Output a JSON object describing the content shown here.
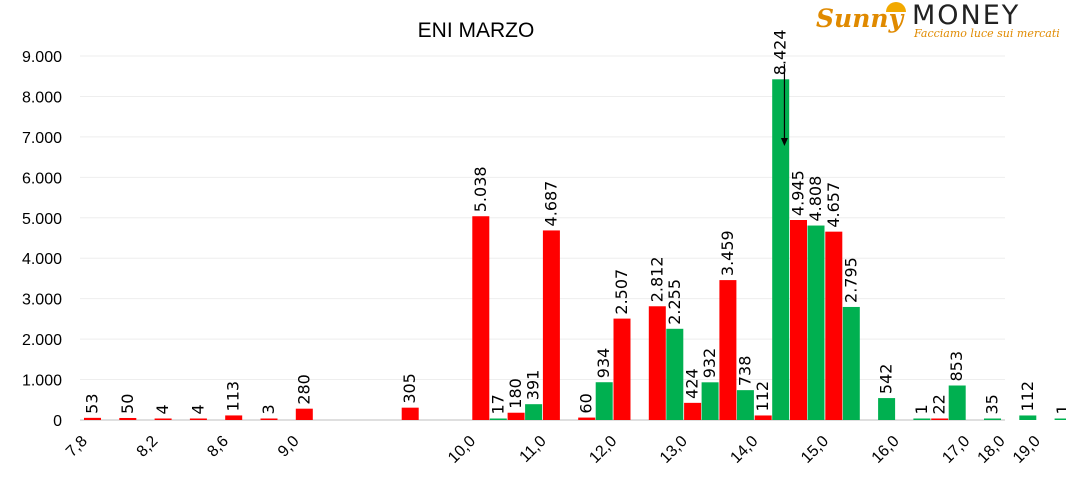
{
  "logo": {
    "brand_sunny": "Sunny",
    "brand_money": "MONEY",
    "tagline": "Facciamo luce sui mercati"
  },
  "colors": {
    "red": "#ff0000",
    "green": "#00b050",
    "axis": "#bfbfbf",
    "grid": "#eeeeee",
    "text": "#000000",
    "brand_orange": "#e08a00"
  },
  "chart_data": {
    "type": "bar",
    "title": "ENI MARZO",
    "xlabel": "",
    "ylabel": "",
    "ylim": [
      0,
      9000
    ],
    "y_ticks": [
      {
        "value": 0,
        "label": "0"
      },
      {
        "value": 1000,
        "label": "1.000"
      },
      {
        "value": 2000,
        "label": "2.000"
      },
      {
        "value": 3000,
        "label": "3.000"
      },
      {
        "value": 4000,
        "label": "4.000"
      },
      {
        "value": 5000,
        "label": "5.000"
      },
      {
        "value": 6000,
        "label": "6.000"
      },
      {
        "value": 7000,
        "label": "7.000"
      },
      {
        "value": 8000,
        "label": "8.000"
      },
      {
        "value": 9000,
        "label": "9.000"
      }
    ],
    "grid": true,
    "legend": "none",
    "categories": [
      "7,8",
      "8,0",
      "8,2",
      "8,4",
      "8,6",
      "8,8",
      "9,0",
      "9,2",
      "9,4",
      "9,6",
      "9,8",
      "10,0",
      "10,5",
      "11,0",
      "11,5",
      "12,0",
      "12,5",
      "13,0",
      "13,5",
      "14,0",
      "14,5",
      "15,0",
      "15,5",
      "16,0",
      "16,5",
      "17,0",
      "18,0",
      "19,0"
    ],
    "x_tick_labels": [
      "7,8",
      "",
      "8,2",
      "",
      "8,6",
      "",
      "9,0",
      "",
      "",
      "",
      "",
      "10,0",
      "",
      "11,0",
      "",
      "12,0",
      "",
      "13,0",
      "",
      "14,0",
      "",
      "15,0",
      "",
      "16,0",
      "",
      "17,0",
      "18,0",
      "19,0"
    ],
    "series": [
      {
        "color": "red",
        "values": [
          53,
          50,
          4,
          4,
          113,
          3,
          280,
          null,
          null,
          305,
          null,
          5038,
          180,
          4687,
          60,
          2507,
          2812,
          424,
          3459,
          112,
          4945,
          4657,
          null,
          null,
          22,
          null,
          null,
          null
        ],
        "labels": [
          "53",
          "50",
          "4",
          "4",
          "113",
          "3",
          "280",
          "",
          "",
          "305",
          "",
          "5.038",
          "180",
          "4.687",
          "60",
          "2.507",
          "2.812",
          "424",
          "3.459",
          "112",
          "4.945",
          "4.657",
          "",
          "",
          "22",
          "",
          "",
          ""
        ]
      },
      {
        "color": "green",
        "values": [
          null,
          null,
          null,
          null,
          null,
          null,
          null,
          null,
          null,
          null,
          null,
          17,
          391,
          null,
          934,
          null,
          2255,
          932,
          738,
          8424,
          4808,
          2795,
          542,
          1,
          853,
          35,
          112,
          1
        ],
        "labels": [
          "",
          "",
          "",
          "",
          "",
          "",
          "",
          "",
          "",
          "",
          "",
          "17",
          "391",
          "",
          "934",
          "",
          "2.255",
          "932",
          "738",
          "8.424",
          "4.808",
          "2.795",
          "542",
          "1",
          "853",
          "35",
          "112",
          "1"
        ],
        "order_override": {
          "18,0": "1"
        }
      }
    ],
    "annotations": [
      {
        "type": "arrow",
        "category": "14,0",
        "from_value": 8800,
        "to_value": 6800,
        "direction": "down"
      }
    ]
  }
}
